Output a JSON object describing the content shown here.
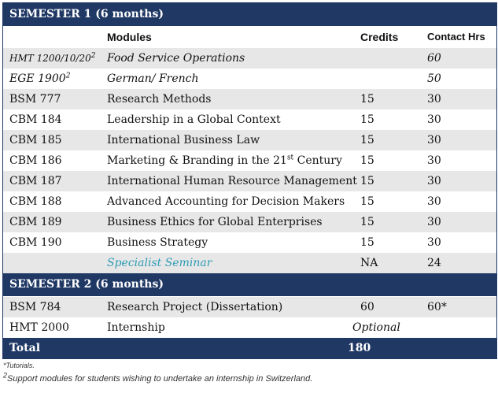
{
  "semester1": {
    "title": "SEMESTER 1 (6 months)",
    "headers": {
      "modules": "Modules",
      "credits": "Credits",
      "contact": "Contact Hrs"
    },
    "rows": [
      {
        "code": "HMT 1200/10/20",
        "code_sup": "2",
        "module": "Food Service Operations",
        "credits": "",
        "hours": "60"
      },
      {
        "code": "EGE 1900",
        "code_sup": "2",
        "module": "German/ French",
        "credits": "",
        "hours": "50"
      },
      {
        "code": "BSM 777",
        "module": "Research Methods",
        "credits": "15",
        "hours": "30"
      },
      {
        "code": "CBM 184",
        "module": "Leadership in a Global Context",
        "credits": "15",
        "hours": "30"
      },
      {
        "code": "CBM 185",
        "module": "International Business Law",
        "credits": "15",
        "hours": "30"
      },
      {
        "code": "CBM 186",
        "module_pre": "Marketing & Branding in the 21",
        "module_sup": "st",
        "module_post": " Century",
        "credits": "15",
        "hours": "30"
      },
      {
        "code": "CBM 187",
        "module": "International Human Resource Management",
        "credits": "15",
        "hours": "30"
      },
      {
        "code": "CBM 188",
        "module": "Advanced Accounting for Decision Makers",
        "credits": "15",
        "hours": "30"
      },
      {
        "code": "CBM 189",
        "module": "Business Ethics for Global Enterprises",
        "credits": "15",
        "hours": "30"
      },
      {
        "code": "CBM 190",
        "module": "Business Strategy",
        "credits": "15",
        "hours": "30"
      },
      {
        "code": "",
        "module": "Specialist Seminar",
        "credits": "NA",
        "hours": "24"
      }
    ]
  },
  "semester2": {
    "title": "SEMESTER 2 (6 months)",
    "rows": [
      {
        "code": "BSM 784",
        "module": "Research Project (Dissertation)",
        "credits": "60",
        "hours": "60*"
      },
      {
        "code": "HMT 2000",
        "module": "Internship",
        "credits": "Optional",
        "hours": ""
      }
    ]
  },
  "total": {
    "label": "Total",
    "value": "180"
  },
  "footnotes": {
    "tutorials": "*Tutorials.",
    "support_mark": "2",
    "support": "Support modules for students wishing to undertake an internship in Switzerland."
  },
  "colors": {
    "band": "#1f3864",
    "alt_row": "#e7e7e7",
    "seminar": "#2e9bb5"
  }
}
